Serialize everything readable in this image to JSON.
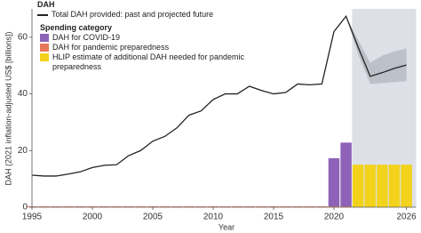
{
  "chart_data": {
    "type": "line",
    "y_axis_label": "DAH (2021 inflation-adjusted US$ [billions])",
    "x_axis_label": "Year",
    "legend_title": "DAH",
    "legend_subtitle": "Spending category",
    "x": [
      1995,
      1996,
      1997,
      1998,
      1999,
      2000,
      2001,
      2002,
      2003,
      2004,
      2005,
      2006,
      2007,
      2008,
      2009,
      2010,
      2011,
      2012,
      2013,
      2014,
      2015,
      2016,
      2017,
      2018,
      2019,
      2020,
      2021,
      2022,
      2023,
      2024,
      2025,
      2026
    ],
    "xlim": [
      1995,
      2026.8
    ],
    "xticks": [
      1995,
      2000,
      2005,
      2010,
      2015,
      2020,
      2026
    ],
    "ylim": [
      0,
      70
    ],
    "yticks": [
      0,
      20,
      40,
      60
    ],
    "grid": false,
    "shaded_xrange": [
      2021.5,
      2026.8
    ],
    "series": [
      {
        "name": "Total DAH provided: past and projected future",
        "color": "#222222",
        "values": [
          11.3,
          11.0,
          11.0,
          11.7,
          12.5,
          14.0,
          14.8,
          15.0,
          18.2,
          20.0,
          23.3,
          25.0,
          28.0,
          32.5,
          34.0,
          38.0,
          40.0,
          40.0,
          42.7,
          41.2,
          40.0,
          40.5,
          43.5,
          43.2,
          43.5,
          62.0,
          67.4,
          56.5,
          46.2,
          47.5,
          49.0,
          50.2
        ],
        "uncertainty_lower": [
          null,
          null,
          null,
          null,
          null,
          null,
          null,
          null,
          null,
          null,
          null,
          null,
          null,
          null,
          null,
          null,
          null,
          null,
          null,
          null,
          null,
          null,
          null,
          null,
          null,
          null,
          67.4,
          54.0,
          43.5,
          43.8,
          44.2,
          44.5
        ],
        "uncertainty_upper": [
          null,
          null,
          null,
          null,
          null,
          null,
          null,
          null,
          null,
          null,
          null,
          null,
          null,
          null,
          null,
          null,
          null,
          null,
          null,
          null,
          null,
          null,
          null,
          null,
          null,
          null,
          67.4,
          59.0,
          51.0,
          53.5,
          55.0,
          56.0
        ]
      }
    ],
    "bar_series": [
      {
        "name": "DAH for pandemic preparedness",
        "color": "#e8765a",
        "values": [
          0.3,
          0.3,
          0.3,
          0.3,
          0.3,
          0.3,
          0.3,
          0.3,
          0.3,
          0.3,
          0.3,
          0.3,
          0.3,
          0.3,
          0.3,
          0.3,
          0.3,
          0.3,
          0.3,
          0.3,
          0.3,
          0.3,
          0.3,
          0.3,
          0.3,
          0.3,
          0.3,
          null,
          null,
          null,
          null,
          null
        ]
      },
      {
        "name": "DAH for COVID-19",
        "color": "#8e62b8",
        "values": [
          null,
          null,
          null,
          null,
          null,
          null,
          null,
          null,
          null,
          null,
          null,
          null,
          null,
          null,
          null,
          null,
          null,
          null,
          null,
          null,
          null,
          null,
          null,
          null,
          null,
          17.0,
          22.5,
          null,
          null,
          null,
          null,
          null
        ]
      },
      {
        "name": "HLIP estimate of additional DAH needed for pandemic preparedness",
        "color": "#f2d21b",
        "values": [
          null,
          null,
          null,
          null,
          null,
          null,
          null,
          null,
          null,
          null,
          null,
          null,
          null,
          null,
          null,
          null,
          null,
          null,
          null,
          null,
          null,
          null,
          null,
          null,
          null,
          null,
          null,
          15.0,
          15.0,
          15.0,
          15.0,
          15.0
        ]
      }
    ]
  }
}
